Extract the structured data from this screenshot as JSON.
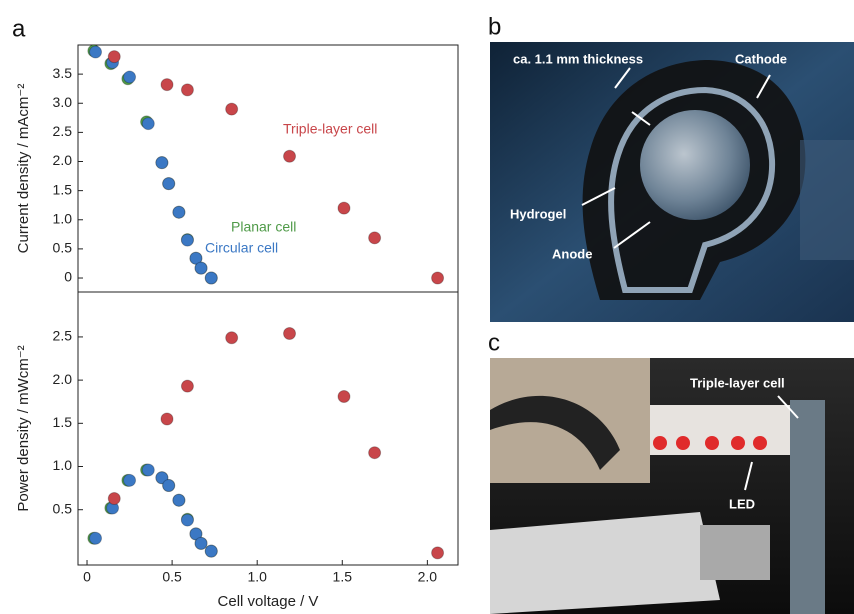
{
  "panel_labels": [
    "a",
    "b",
    "c"
  ],
  "photo_b_labels": [
    "ca. 1.1 mm thickness",
    "Cathode",
    "Hydrogel",
    "Anode"
  ],
  "photo_c_labels": [
    "Triple-layer cell",
    "LED"
  ],
  "chart_data": [
    {
      "type": "scatter",
      "ylabel": "Current density / mAcm⁻²",
      "xlim": [
        -0.053,
        2.18
      ],
      "ylim": [
        -0.24,
        4.0
      ],
      "yticks": [
        0,
        0.5,
        {
          "value": 1,
          "label": "1.0"
        },
        1.5,
        {
          "value": 2,
          "label": "2.0"
        },
        2.5,
        {
          "value": 3,
          "label": "3.0"
        },
        3.5
      ],
      "series": [
        {
          "name": "Planar cell",
          "color": "#4f9a48",
          "x": [
            0.04,
            0.14,
            0.24,
            0.35,
            0.44,
            0.48,
            0.54,
            0.59,
            0.64,
            0.67,
            0.73
          ],
          "values": [
            3.9,
            3.68,
            3.42,
            2.68,
            1.98,
            1.62,
            1.13,
            0.66,
            0.34,
            0.17,
            0.0
          ]
        },
        {
          "name": "Circular cell",
          "color": "#3b78c4",
          "x": [
            0.05,
            0.15,
            0.25,
            0.36,
            0.44,
            0.48,
            0.54,
            0.59,
            0.64,
            0.67,
            0.73
          ],
          "values": [
            3.88,
            3.7,
            3.45,
            2.65,
            1.98,
            1.62,
            1.13,
            0.65,
            0.34,
            0.17,
            0.0
          ]
        },
        {
          "name": "Triple-layer cell",
          "color": "#c8464a",
          "x": [
            0.16,
            0.47,
            0.59,
            0.85,
            1.19,
            1.51,
            1.69,
            2.06
          ],
          "values": [
            3.8,
            3.32,
            3.23,
            2.9,
            2.09,
            1.2,
            0.69,
            0.0
          ]
        }
      ]
    },
    {
      "type": "scatter",
      "xlabel": "Cell voltage / V",
      "ylabel": "Power density / mWcm⁻²",
      "xlim": [
        -0.053,
        2.18
      ],
      "ylim": [
        -0.14,
        3.02
      ],
      "xticks": [
        0,
        0.5,
        {
          "value": 1,
          "label": "1.0"
        },
        1.5,
        {
          "value": 2,
          "label": "2.0"
        }
      ],
      "yticks": [
        0.5,
        {
          "value": 1,
          "label": "1.0"
        },
        1.5,
        {
          "value": 2,
          "label": "2.0"
        },
        2.5
      ],
      "series": [
        {
          "color": "#4f9a48",
          "x": [
            0.04,
            0.14,
            0.24,
            0.35,
            0.44,
            0.48,
            0.54,
            0.59,
            0.64,
            0.67,
            0.73
          ],
          "values": [
            0.17,
            0.52,
            0.84,
            0.96,
            0.87,
            0.78,
            0.61,
            0.39,
            0.22,
            0.11,
            0.02
          ]
        },
        {
          "color": "#3b78c4",
          "x": [
            0.05,
            0.15,
            0.25,
            0.36,
            0.44,
            0.48,
            0.54,
            0.59,
            0.64,
            0.67,
            0.73
          ],
          "values": [
            0.17,
            0.52,
            0.84,
            0.96,
            0.87,
            0.78,
            0.61,
            0.38,
            0.22,
            0.11,
            0.02
          ]
        },
        {
          "color": "#c8464a",
          "x": [
            0.16,
            0.47,
            0.59,
            0.85,
            1.19,
            1.51,
            1.69,
            2.06
          ],
          "values": [
            0.63,
            1.55,
            1.93,
            2.49,
            2.54,
            1.81,
            1.16,
            0.0
          ]
        }
      ]
    }
  ]
}
